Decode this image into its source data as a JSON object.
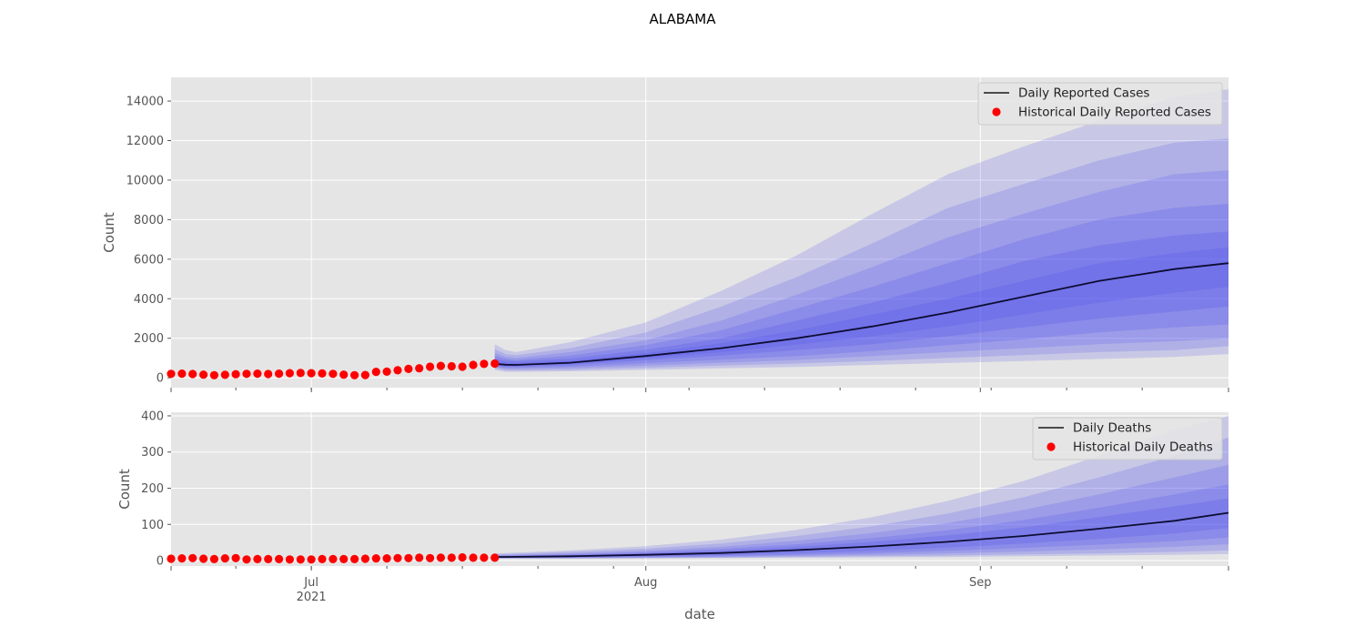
{
  "figure": {
    "title": "ALABAMA",
    "xlabel": "date",
    "x_ticks": [
      {
        "date": "2021-07-01",
        "label": "Jul",
        "sublabel": "2021"
      },
      {
        "date": "2021-08-01",
        "label": "Aug",
        "sublabel": ""
      },
      {
        "date": "2021-09-01",
        "label": "Sep",
        "sublabel": ""
      }
    ],
    "xlim": [
      "2021-06-18",
      "2021-09-24"
    ]
  },
  "colors": {
    "background": "#e5e5e5",
    "grid": "#ffffff",
    "median_line": "#0d0d33",
    "band": "#3a3af0",
    "historical_points": "#ff0000"
  },
  "chart_data": [
    {
      "type": "area",
      "panel": "cases",
      "ylabel": "Count",
      "ylim": [
        -500,
        15200
      ],
      "yticks": [
        0,
        2000,
        4000,
        6000,
        8000,
        10000,
        12000,
        14000
      ],
      "legend": {
        "placement": "top-right",
        "entries": [
          "Daily Reported Cases",
          "Historical Daily Reported Cases"
        ]
      },
      "historical": {
        "name": "Historical Daily Reported Cases",
        "start_date": "2021-06-18",
        "values": [
          200,
          210,
          190,
          160,
          130,
          150,
          180,
          200,
          210,
          190,
          210,
          230,
          240,
          230,
          220,
          200,
          160,
          130,
          140,
          300,
          310,
          380,
          450,
          480,
          560,
          600,
          580,
          560,
          650,
          700,
          720
        ]
      },
      "forecast": {
        "name": "Daily Reported Cases",
        "x": [
          "2021-07-18",
          "2021-07-19",
          "2021-07-20",
          "2021-07-25",
          "2021-08-01",
          "2021-08-08",
          "2021-08-15",
          "2021-08-22",
          "2021-08-29",
          "2021-09-05",
          "2021-09-12",
          "2021-09-19",
          "2021-09-24"
        ],
        "median": [
          700,
          660,
          650,
          760,
          1100,
          1500,
          2000,
          2600,
          3300,
          4100,
          4900,
          5500,
          5800
        ],
        "bands": [
          {
            "lower": [
              400,
              300,
              300,
              330,
              400,
              480,
              550,
              650,
              750,
              850,
              950,
              1050,
              1200
            ],
            "upper": [
              1700,
              1400,
              1300,
              1800,
              2800,
              4400,
              6200,
              8300,
              10300,
              11700,
              13000,
              14200,
              14600
            ]
          },
          {
            "lower": [
              480,
              380,
              370,
              400,
              500,
              620,
              720,
              850,
              1000,
              1150,
              1300,
              1400,
              1600
            ],
            "upper": [
              1450,
              1200,
              1150,
              1500,
              2300,
              3600,
              5100,
              6800,
              8600,
              9800,
              11000,
              11900,
              12100
            ]
          },
          {
            "lower": [
              540,
              440,
              440,
              480,
              620,
              760,
              900,
              1100,
              1300,
              1500,
              1700,
              1850,
              2000
            ],
            "upper": [
              1250,
              1050,
              1000,
              1300,
              1900,
              2900,
              4200,
              5600,
              7100,
              8300,
              9400,
              10300,
              10500
            ]
          },
          {
            "lower": [
              580,
              500,
              500,
              560,
              740,
              920,
              1100,
              1350,
              1650,
              1950,
              2300,
              2550,
              2700
            ],
            "upper": [
              1100,
              950,
              900,
              1120,
              1650,
              2400,
              3500,
              4600,
              5800,
              7000,
              8000,
              8600,
              8800
            ]
          },
          {
            "lower": [
              620,
              560,
              560,
              640,
              880,
              1120,
              1400,
              1700,
              2100,
              2550,
              3000,
              3350,
              3600
            ],
            "upper": [
              950,
              860,
              830,
              980,
              1420,
              2000,
              2900,
              3800,
              4800,
              5900,
              6700,
              7200,
              7400
            ]
          },
          {
            "lower": [
              660,
              610,
              610,
              700,
              980,
              1300,
              1680,
              2100,
              2600,
              3200,
              3800,
              4300,
              4600
            ],
            "upper": [
              820,
              760,
              740,
              860,
              1250,
              1750,
              2400,
              3200,
              4000,
              4900,
              5800,
              6300,
              6600
            ]
          }
        ]
      }
    },
    {
      "type": "area",
      "panel": "deaths",
      "ylabel": "Count",
      "ylim": [
        -15,
        410
      ],
      "yticks": [
        0,
        100,
        200,
        300,
        400
      ],
      "legend": {
        "placement": "top-right",
        "entries": [
          "Daily Deaths",
          "Historical Daily Deaths"
        ]
      },
      "historical": {
        "name": "Historical Daily Deaths",
        "start_date": "2021-06-18",
        "values": [
          5,
          6,
          7,
          5,
          4,
          6,
          7,
          3,
          4,
          4,
          4,
          3,
          3,
          3,
          4,
          4,
          4,
          4,
          5,
          6,
          6,
          7,
          7,
          8,
          7,
          8,
          8,
          9,
          8,
          8,
          8
        ]
      },
      "forecast": {
        "name": "Daily Deaths",
        "x": [
          "2021-07-18",
          "2021-07-25",
          "2021-08-01",
          "2021-08-08",
          "2021-08-15",
          "2021-08-22",
          "2021-08-29",
          "2021-09-05",
          "2021-09-12",
          "2021-09-19",
          "2021-09-24"
        ],
        "median": [
          10,
          12,
          16,
          21,
          29,
          39,
          52,
          68,
          88,
          110,
          132
        ],
        "bands": [
          {
            "lower": [
              5,
              5,
              6,
              7,
              8,
              9,
              10,
              12,
              14,
              16,
              18
            ],
            "upper": [
              20,
              28,
              40,
              58,
              85,
              120,
              165,
              220,
              290,
              360,
              400
            ]
          },
          {
            "lower": [
              6,
              6,
              7,
              8,
              10,
              12,
              14,
              17,
              20,
              24,
              28
            ],
            "upper": [
              17,
              24,
              33,
              47,
              68,
              95,
              130,
              175,
              230,
              290,
              340
            ]
          },
          {
            "lower": [
              7,
              7,
              8,
              10,
              13,
              16,
              20,
              25,
              31,
              38,
              45
            ],
            "upper": [
              15,
              20,
              27,
              38,
              55,
              76,
              104,
              140,
              183,
              230,
              265
            ]
          },
          {
            "lower": [
              8,
              8,
              10,
              12,
              16,
              21,
              27,
              35,
              44,
              54,
              64
            ],
            "upper": [
              13,
              17,
              23,
              32,
              45,
              62,
              84,
              112,
              146,
              183,
              210
            ]
          },
          {
            "lower": [
              9,
              10,
              12,
              15,
              20,
              27,
              36,
              47,
              60,
              75,
              90
            ],
            "upper": [
              12,
              15,
              20,
              27,
              38,
              52,
              70,
              92,
              120,
              150,
              172
            ]
          }
        ]
      }
    }
  ]
}
